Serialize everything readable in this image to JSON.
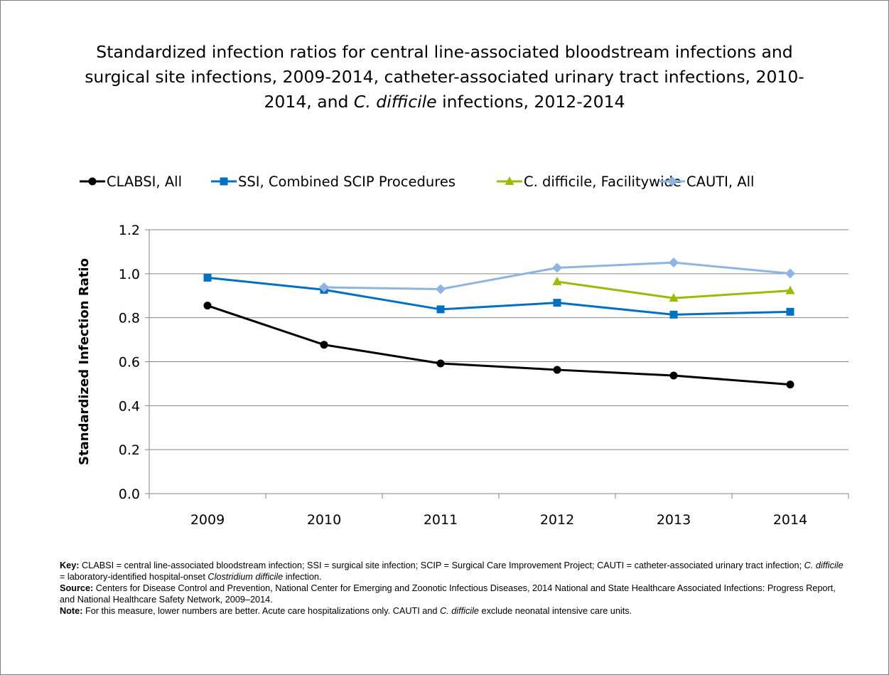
{
  "chart_data": {
    "type": "line",
    "title_parts": [
      {
        "text": "Standardized infection ratios for central line-associated bloodstream infections and surgical site infections, 2009-2014, catheter-associated urinary tract infections, 2010-2014, and ",
        "italic": false
      },
      {
        "text": "C. difficile",
        "italic": true
      },
      {
        "text": " infections, 2012-2014",
        "italic": false
      }
    ],
    "ylabel": "Standardized Infection Ratio",
    "xlabel": "",
    "ylim": [
      0,
      1.2
    ],
    "y_ticks": [
      "0.0",
      "0.2",
      "0.4",
      "0.6",
      "0.8",
      "1.0",
      "1.2"
    ],
    "y_tick_values": [
      0,
      0.2,
      0.4,
      0.6,
      0.8,
      1.0,
      1.2
    ],
    "categories": [
      "2009",
      "2010",
      "2011",
      "2012",
      "2013",
      "2014"
    ],
    "grid": true,
    "legend_position": "top",
    "series": [
      {
        "name": "CLABSI, All",
        "color": "#000000",
        "marker": "circle",
        "values": [
          0.855,
          0.677,
          0.592,
          0.563,
          0.537,
          0.496
        ]
      },
      {
        "name": "SSI, Combined SCIP Procedures",
        "color": "#0070C0",
        "marker": "square",
        "values": [
          0.982,
          0.927,
          0.838,
          0.868,
          0.814,
          0.827
        ]
      },
      {
        "name": "C. difficile, Facilitywide",
        "color": "#9BBB0B",
        "marker": "triangle",
        "values": [
          null,
          null,
          null,
          0.964,
          0.889,
          0.923
        ]
      },
      {
        "name": "CAUTI, All",
        "color": "#8EB4E3",
        "marker": "diamond",
        "values": [
          null,
          0.938,
          0.93,
          1.027,
          1.051,
          1.001
        ]
      }
    ]
  },
  "notes": [
    {
      "label": "Key:",
      "parts": [
        {
          "text": " CLABSI = central line-associated bloodstream infection; SSI = surgical site infection; SCIP = Surgical Care Improvement Project; CAUTI = catheter-associated urinary tract infection; ",
          "italic": false
        },
        {
          "text": "C. difficile",
          "italic": true
        },
        {
          "text": " = laboratory-identified hospital-onset ",
          "italic": false
        },
        {
          "text": "Clostridium difficile",
          "italic": true
        },
        {
          "text": " infection.",
          "italic": false
        }
      ]
    },
    {
      "label": "Source:",
      "parts": [
        {
          "text": " Centers for Disease Control and Prevention, National Center for Emerging and Zoonotic Infectious Diseases,  2014 National and State Healthcare Associated Infections: Progress Report, and National Healthcare Safety Network, 2009–2014.",
          "italic": false
        }
      ]
    },
    {
      "label": "Note:",
      "parts": [
        {
          "text": " For this measure, lower numbers are better. Acute care hospitalizations only. CAUTI and ",
          "italic": false
        },
        {
          "text": "C. difficile",
          "italic": true
        },
        {
          "text": " exclude neonatal intensive care units.",
          "italic": false
        }
      ]
    }
  ]
}
